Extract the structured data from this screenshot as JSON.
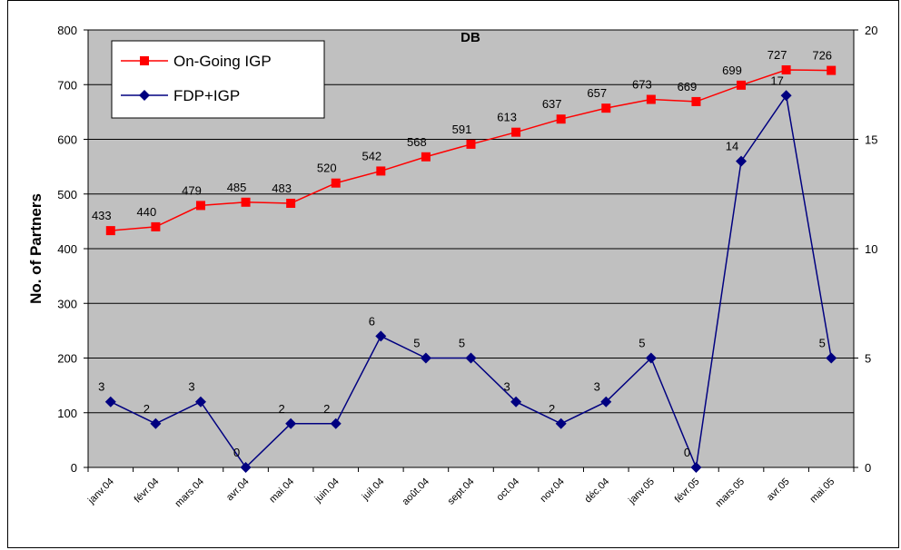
{
  "chart_data": {
    "type": "line",
    "title": "DB",
    "y_label": "No. of Partners",
    "categories": [
      "janv.04",
      "févr.04",
      "mars.04",
      "avr.04",
      "mai.04",
      "juin.04",
      "juil.04",
      "août.04",
      "sept.04",
      "oct.04",
      "nov.04",
      "déc.04",
      "janv.05",
      "févr.05",
      "mars.05",
      "avr.05",
      "mai.05"
    ],
    "series": [
      {
        "name": "On-Going IGP",
        "color": "#ff0000",
        "marker": "square",
        "values": [
          433,
          440,
          479,
          485,
          483,
          520,
          542,
          568,
          591,
          613,
          637,
          657,
          673,
          669,
          699,
          727,
          726
        ]
      },
      {
        "name": "FDP+IGP",
        "color": "#000080",
        "marker": "diamond",
        "axis": "y2",
        "values": [
          3,
          2,
          3,
          0,
          2,
          2,
          6,
          5,
          5,
          3,
          2,
          3,
          5,
          0,
          14,
          17,
          5
        ]
      }
    ],
    "ylim": [
      0,
      800
    ],
    "yticks": [
      0,
      100,
      200,
      300,
      400,
      500,
      600,
      700,
      800
    ],
    "y2lim": [
      0,
      20
    ],
    "y2ticks": [
      0,
      5,
      10,
      15,
      20
    ],
    "grid": true,
    "legend": "top-left",
    "background": "#c0c0c0"
  }
}
